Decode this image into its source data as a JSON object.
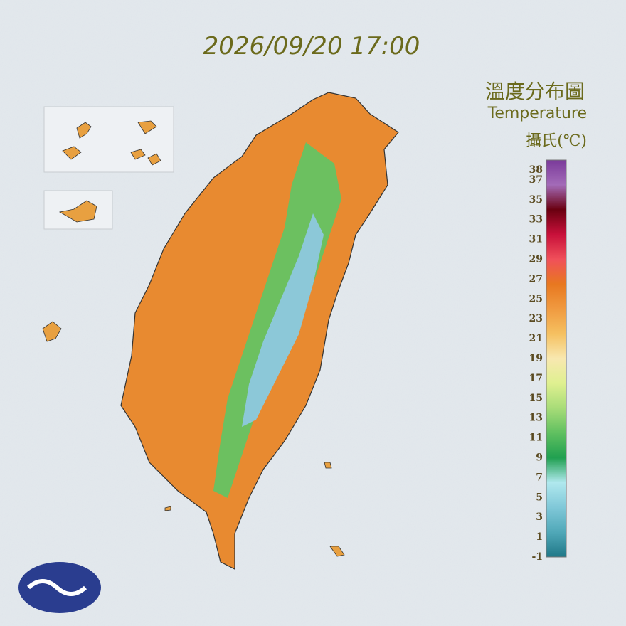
{
  "timestamp": "2026/09/20 17:00",
  "title": "溫度分布圖",
  "subtitle": "Temperature",
  "unit": "攝氏(℃)",
  "legend": {
    "ticks": [
      38,
      37,
      35,
      33,
      31,
      29,
      27,
      25,
      23,
      21,
      19,
      17,
      15,
      13,
      11,
      9,
      7,
      5,
      3,
      1,
      -1
    ],
    "colors": [
      "#7a3a9a",
      "#a36bb8",
      "#6a0010",
      "#c8103a",
      "#f0505a",
      "#e87820",
      "#f09a40",
      "#f5c060",
      "#f8e8b0",
      "#dff090",
      "#a8dc78",
      "#60c060",
      "#20a050",
      "#b0e8ee",
      "#80c8d8",
      "#50a8b8",
      "#207888"
    ]
  }
}
